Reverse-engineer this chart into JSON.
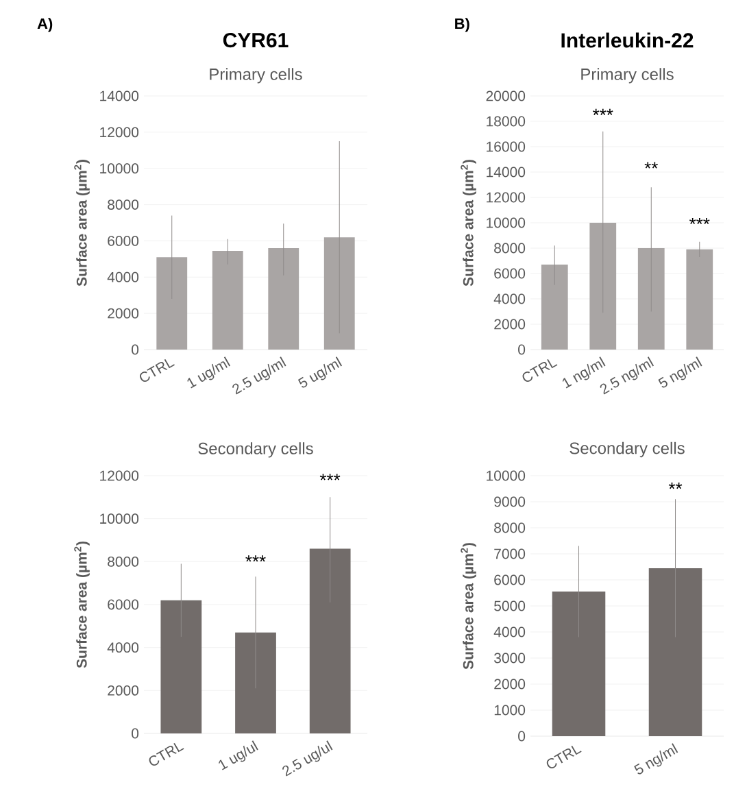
{
  "chart_data": [
    {
      "type": "bar",
      "title": "CYR61",
      "subtitle": "Primary cells",
      "ylabel": "Surface area (µm$^{2}$)",
      "categories": [
        "CTRL",
        "1 ug/ml",
        "2.5 ug/ml",
        "5 ug/ml"
      ],
      "values": [
        5100,
        5450,
        5600,
        6200
      ],
      "errors": [
        [
          2800,
          7400
        ],
        [
          4700,
          6100
        ],
        [
          4100,
          6950
        ],
        [
          900,
          11500
        ]
      ],
      "color": "#a9a5a4",
      "ylim": [
        0,
        14000
      ],
      "yticks": [
        0,
        2000,
        4000,
        6000,
        8000,
        10000,
        12000,
        14000
      ],
      "grid": "y",
      "annotations": [
        "A)"
      ]
    },
    {
      "type": "bar",
      "title": "Interleukin-22",
      "subtitle": "Primary cells",
      "ylabel": "Surface area (µm$^{2}$)",
      "categories": [
        "CTRL",
        "1 ng/ml",
        "2.5 ng/ml",
        "5 ng/ml"
      ],
      "values": [
        6700,
        10000,
        8000,
        7900
      ],
      "errors": [
        [
          5100,
          8200
        ],
        [
          2900,
          17200
        ],
        [
          3000,
          12800
        ],
        [
          7300,
          8500
        ]
      ],
      "color": "#a9a5a4",
      "ylim": [
        0,
        20000
      ],
      "yticks": [
        0,
        2000,
        4000,
        6000,
        8000,
        10000,
        12000,
        14000,
        16000,
        18000,
        20000
      ],
      "grid": "y",
      "annotations": [
        "B)",
        "***",
        "**",
        "***"
      ]
    },
    {
      "type": "bar",
      "title": "Secondary cells",
      "ylabel": "Surface area (µm$^{2}$)",
      "categories": [
        "CTRL",
        "1 ug/ul",
        "2.5 ug/ul"
      ],
      "values": [
        6200,
        4700,
        8600
      ],
      "errors": [
        [
          4500,
          7900
        ],
        [
          2100,
          7300
        ],
        [
          6100,
          11000
        ]
      ],
      "color": "#726c6a",
      "ylim": [
        0,
        12000
      ],
      "yticks": [
        0,
        2000,
        4000,
        6000,
        8000,
        10000,
        12000
      ],
      "grid": "y",
      "annotations": [
        "***",
        "***"
      ]
    },
    {
      "type": "bar",
      "title": "Secondary cells",
      "ylabel": "Surface area (µm$^{2}$)",
      "categories": [
        "CTRL",
        "5 ng/ml"
      ],
      "values": [
        5550,
        6450
      ],
      "errors": [
        [
          3800,
          7300
        ],
        [
          3800,
          9100
        ]
      ],
      "color": "#726c6a",
      "ylim": [
        0,
        10000
      ],
      "yticks": [
        0,
        1000,
        2000,
        3000,
        4000,
        5000,
        6000,
        7000,
        8000,
        9000,
        10000
      ],
      "grid": "y",
      "annotations": [
        "**"
      ]
    }
  ]
}
